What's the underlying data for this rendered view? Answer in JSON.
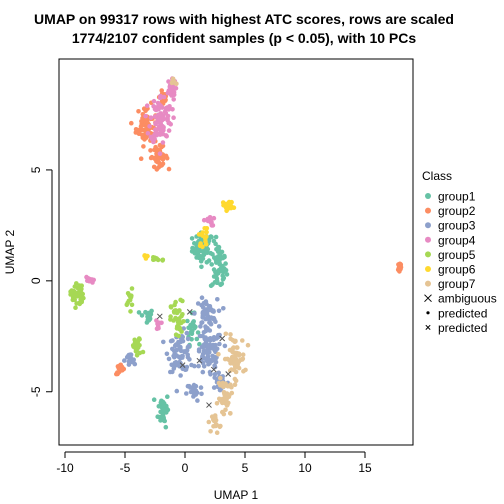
{
  "chart_data": {
    "type": "scatter",
    "title_line1": "UMAP on 99317 rows with highest ATC scores, rows are scaled",
    "title_line2": "1774/2107 confident samples (p < 0.05), with 10 PCs",
    "xlabel": "UMAP 1",
    "ylabel": "UMAP 2",
    "xlim": [
      -10.5,
      19
    ],
    "ylim": [
      -7.4,
      10
    ],
    "xticks": [
      -10,
      -5,
      0,
      5,
      10,
      15
    ],
    "yticks": [
      -5,
      0,
      5
    ],
    "legend_title": "Class",
    "legend_position": "right",
    "groups": [
      {
        "name": "group1",
        "color": "#66C2A5",
        "clusters": [
          {
            "x": 1.5,
            "y": 1.5,
            "sx": 0.8,
            "sy": 0.6,
            "n": 60
          },
          {
            "x": 2.8,
            "y": 0.6,
            "sx": 0.6,
            "sy": 1.0,
            "n": 60
          },
          {
            "x": -3.2,
            "y": -1.6,
            "sx": 0.5,
            "sy": 0.3,
            "n": 20
          },
          {
            "x": -1.8,
            "y": -5.8,
            "sx": 0.4,
            "sy": 0.7,
            "n": 40
          },
          {
            "x": 0.6,
            "y": -2.2,
            "sx": 0.4,
            "sy": 0.6,
            "n": 25
          }
        ]
      },
      {
        "name": "group2",
        "color": "#FC8D62",
        "clusters": [
          {
            "x": -3.2,
            "y": 7.0,
            "sx": 0.8,
            "sy": 0.8,
            "n": 70
          },
          {
            "x": -2.2,
            "y": 5.6,
            "sx": 0.7,
            "sy": 0.4,
            "n": 40
          },
          {
            "x": -5.4,
            "y": -4.0,
            "sx": 0.3,
            "sy": 0.2,
            "n": 20
          },
          {
            "x": 17.9,
            "y": 0.6,
            "sx": 0.15,
            "sy": 0.3,
            "n": 12
          },
          {
            "x": -1.8,
            "y": 8.3,
            "sx": 0.3,
            "sy": 0.5,
            "n": 20
          }
        ]
      },
      {
        "name": "group3",
        "color": "#8DA0CB",
        "clusters": [
          {
            "x": 2.0,
            "y": -3.3,
            "sx": 1.0,
            "sy": 1.0,
            "n": 90
          },
          {
            "x": -0.4,
            "y": -3.2,
            "sx": 0.9,
            "sy": 0.8,
            "n": 70
          },
          {
            "x": 1.8,
            "y": -1.5,
            "sx": 0.8,
            "sy": 0.6,
            "n": 50
          },
          {
            "x": -4.6,
            "y": -3.6,
            "sx": 0.4,
            "sy": 0.3,
            "n": 20
          },
          {
            "x": 0.8,
            "y": -5.0,
            "sx": 0.6,
            "sy": 0.4,
            "n": 25
          },
          {
            "x": 3.0,
            "y": -4.6,
            "sx": 0.6,
            "sy": 0.4,
            "n": 25
          }
        ]
      },
      {
        "name": "group4",
        "color": "#E78AC3",
        "clusters": [
          {
            "x": -2.0,
            "y": 7.3,
            "sx": 0.8,
            "sy": 1.0,
            "n": 90
          },
          {
            "x": -1.2,
            "y": 8.6,
            "sx": 0.4,
            "sy": 0.4,
            "n": 30
          },
          {
            "x": -8.0,
            "y": 0.0,
            "sx": 0.3,
            "sy": 0.2,
            "n": 10
          },
          {
            "x": 2.0,
            "y": 2.7,
            "sx": 0.4,
            "sy": 0.2,
            "n": 12
          },
          {
            "x": -2.2,
            "y": -2.0,
            "sx": 0.2,
            "sy": 0.2,
            "n": 8
          }
        ]
      },
      {
        "name": "group5",
        "color": "#A6D854",
        "clusters": [
          {
            "x": -9.0,
            "y": -0.6,
            "sx": 0.5,
            "sy": 0.5,
            "n": 40
          },
          {
            "x": -0.6,
            "y": -1.8,
            "sx": 0.5,
            "sy": 0.8,
            "n": 40
          },
          {
            "x": -4.0,
            "y": -3.0,
            "sx": 0.4,
            "sy": 0.4,
            "n": 25
          },
          {
            "x": -2.3,
            "y": 1.0,
            "sx": 0.6,
            "sy": 0.1,
            "n": 12
          },
          {
            "x": -4.6,
            "y": -0.8,
            "sx": 0.2,
            "sy": 0.4,
            "n": 12
          }
        ]
      },
      {
        "name": "group6",
        "color": "#FFD92F",
        "clusters": [
          {
            "x": 3.6,
            "y": 3.4,
            "sx": 0.4,
            "sy": 0.2,
            "n": 20
          },
          {
            "x": 1.6,
            "y": 2.0,
            "sx": 0.4,
            "sy": 0.4,
            "n": 15
          },
          {
            "x": -3.3,
            "y": 1.1,
            "sx": 0.2,
            "sy": 0.1,
            "n": 6
          }
        ]
      },
      {
        "name": "group7",
        "color": "#E5C494",
        "clusters": [
          {
            "x": 4.1,
            "y": -3.5,
            "sx": 0.8,
            "sy": 0.9,
            "n": 60
          },
          {
            "x": 3.4,
            "y": -5.3,
            "sx": 0.6,
            "sy": 0.8,
            "n": 40
          },
          {
            "x": 2.6,
            "y": -6.4,
            "sx": 0.3,
            "sy": 0.4,
            "n": 15
          },
          {
            "x": -1.0,
            "y": 9.0,
            "sx": 0.2,
            "sy": 0.2,
            "n": 8
          }
        ]
      }
    ],
    "legend_entries": [
      {
        "label": "group1",
        "symbol": "dot",
        "color": "#66C2A5"
      },
      {
        "label": "group2",
        "symbol": "dot",
        "color": "#FC8D62"
      },
      {
        "label": "group3",
        "symbol": "dot",
        "color": "#8DA0CB"
      },
      {
        "label": "group4",
        "symbol": "dot",
        "color": "#E78AC3"
      },
      {
        "label": "group5",
        "symbol": "dot",
        "color": "#A6D854"
      },
      {
        "label": "group6",
        "symbol": "dot",
        "color": "#FFD92F"
      },
      {
        "label": "group7",
        "symbol": "dot",
        "color": "#E5C494"
      },
      {
        "label": "ambiguous",
        "symbol": "cross",
        "color": "#000000"
      },
      {
        "label": "predicted",
        "symbol": "smalldot",
        "color": "#000000"
      },
      {
        "label": "predicted",
        "symbol": "smallcross",
        "color": "#000000"
      }
    ]
  }
}
